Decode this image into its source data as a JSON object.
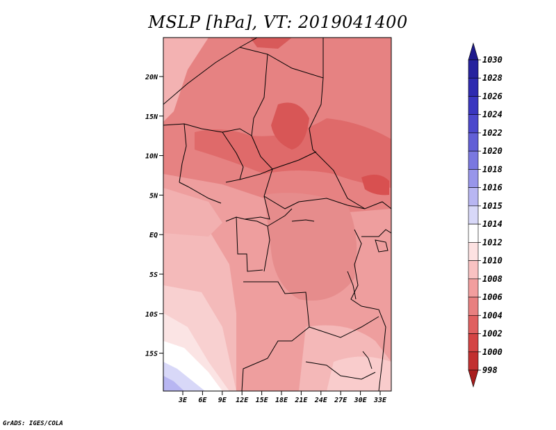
{
  "title": "MSLP [hPa], VT: 2019041400",
  "footer": "GrADS: IGES/COLA",
  "lat_labels": [
    "20N",
    "15N",
    "10N",
    "5N",
    "EQ",
    "5S",
    "10S",
    "15S"
  ],
  "lon_labels": [
    "3E",
    "6E",
    "9E",
    "12E",
    "15E",
    "18E",
    "21E",
    "24E",
    "27E",
    "30E",
    "33E"
  ],
  "colorbar": {
    "labels": [
      "1030",
      "1028",
      "1026",
      "1024",
      "1022",
      "1020",
      "1018",
      "1016",
      "1015",
      "1014",
      "1012",
      "1010",
      "1008",
      "1006",
      "1004",
      "1002",
      "1000",
      "998"
    ],
    "colors": [
      "#1e1a8c",
      "#26229e",
      "#2e2ab0",
      "#3a36c0",
      "#4c48cc",
      "#625fd6",
      "#7a78e0",
      "#9896ea",
      "#b8b6f2",
      "#d8d8f8",
      "#ffffff",
      "#fde2e2",
      "#f9c2c2",
      "#f29e9e",
      "#e88080",
      "#e06060",
      "#d44444",
      "#c23030",
      "#a81c1c"
    ]
  }
}
